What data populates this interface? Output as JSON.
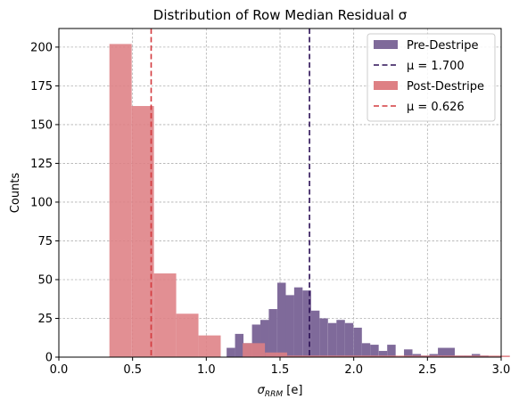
{
  "chart_data": {
    "type": "histogram",
    "title": "Distribution of Row Median Residual σ",
    "xlabel": "σ_RRM [e]",
    "xlabel_main": "σ",
    "xlabel_sub": "RRM",
    "xlabel_unit": " [e]",
    "ylabel": "Counts",
    "xlim": [
      0.0,
      3.0
    ],
    "ylim": [
      0,
      212
    ],
    "xticks": [
      "0.0",
      "0.5",
      "1.0",
      "1.5",
      "2.0",
      "2.5",
      "3.0"
    ],
    "yticks": [
      "0",
      "25",
      "50",
      "75",
      "100",
      "125",
      "150",
      "175",
      "200"
    ],
    "grid": true,
    "legend_position": "top-right",
    "series": [
      {
        "name": "Pre-Destripe",
        "color": "#7f6a9a",
        "bin_width": 0.0573,
        "bins": [
          {
            "x0": 1.138,
            "h": 6
          },
          {
            "x0": 1.195,
            "h": 15
          },
          {
            "x0": 1.252,
            "h": 9
          },
          {
            "x0": 1.31,
            "h": 21
          },
          {
            "x0": 1.367,
            "h": 24
          },
          {
            "x0": 1.424,
            "h": 31
          },
          {
            "x0": 1.482,
            "h": 48
          },
          {
            "x0": 1.539,
            "h": 40
          },
          {
            "x0": 1.596,
            "h": 45
          },
          {
            "x0": 1.654,
            "h": 43
          },
          {
            "x0": 1.711,
            "h": 30
          },
          {
            "x0": 1.768,
            "h": 25
          },
          {
            "x0": 1.826,
            "h": 22
          },
          {
            "x0": 1.883,
            "h": 24
          },
          {
            "x0": 1.94,
            "h": 22
          },
          {
            "x0": 1.998,
            "h": 19
          },
          {
            "x0": 2.055,
            "h": 9
          },
          {
            "x0": 2.112,
            "h": 8
          },
          {
            "x0": 2.17,
            "h": 4
          },
          {
            "x0": 2.227,
            "h": 8
          },
          {
            "x0": 2.341,
            "h": 5
          },
          {
            "x0": 2.399,
            "h": 2
          },
          {
            "x0": 2.456,
            "h": 1
          },
          {
            "x0": 2.513,
            "h": 2
          },
          {
            "x0": 2.571,
            "h": 6
          },
          {
            "x0": 2.628,
            "h": 6
          },
          {
            "x0": 2.685,
            "h": 1
          },
          {
            "x0": 2.742,
            "h": 1
          },
          {
            "x0": 2.8,
            "h": 2
          },
          {
            "x0": 2.857,
            "h": 1
          }
        ]
      },
      {
        "name": "Post-Destripe",
        "color": "#de8084",
        "bin_width": 0.1508,
        "bins": [
          {
            "x0": 0.343,
            "h": 202
          },
          {
            "x0": 0.494,
            "h": 162
          },
          {
            "x0": 0.645,
            "h": 54
          },
          {
            "x0": 0.796,
            "h": 28
          },
          {
            "x0": 0.947,
            "h": 14
          },
          {
            "x0": 1.247,
            "h": 9
          },
          {
            "x0": 1.398,
            "h": 3
          },
          {
            "x0": 1.549,
            "h": 1
          },
          {
            "x0": 1.7,
            "h": 1
          },
          {
            "x0": 1.851,
            "h": 1
          },
          {
            "x0": 2.002,
            "h": 1
          },
          {
            "x0": 2.153,
            "h": 1
          },
          {
            "x0": 2.304,
            "h": 1
          },
          {
            "x0": 2.455,
            "h": 1
          },
          {
            "x0": 2.606,
            "h": 1
          },
          {
            "x0": 2.757,
            "h": 1
          },
          {
            "x0": 2.908,
            "h": 1
          }
        ]
      }
    ],
    "mean_lines": [
      {
        "label": "μ = 1.700",
        "value": 1.7,
        "color": "#2b0f55"
      },
      {
        "label": "μ = 0.626",
        "value": 0.626,
        "color": "#d33a3e"
      }
    ],
    "legend": [
      {
        "label": "Pre-Destripe",
        "kind": "patch",
        "color": "#7f6a9a"
      },
      {
        "label": "μ = 1.700",
        "kind": "dash",
        "color": "#2b0f55"
      },
      {
        "label": "Post-Destripe",
        "kind": "patch",
        "color": "#de8084"
      },
      {
        "label": "μ = 0.626",
        "kind": "dash",
        "color": "#d33a3e"
      }
    ]
  }
}
